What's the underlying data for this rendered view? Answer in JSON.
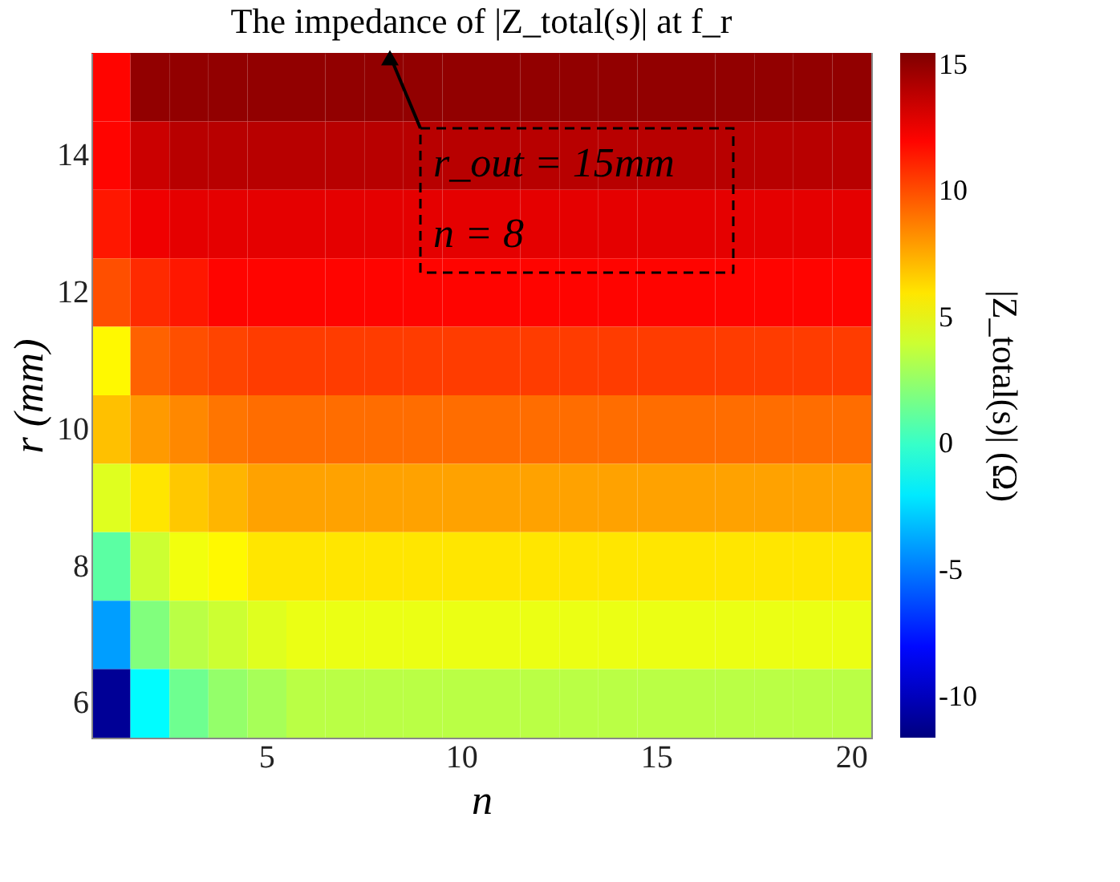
{
  "chart_data": {
    "type": "heatmap",
    "title": "The impedance of |Z_total(s)| at f_r",
    "xlabel": "n",
    "ylabel": "r (mm)",
    "clabel": "|Z_total(s)| (Ω)",
    "categories": [
      null,
      null,
      null,
      null,
      "5",
      null,
      null,
      null,
      null,
      "10",
      null,
      null,
      null,
      null,
      "15",
      null,
      null,
      null,
      null,
      "20"
    ],
    "y_categories": [
      null,
      "14",
      null,
      "12",
      null,
      "10",
      null,
      "8",
      null,
      "6"
    ],
    "cells": [
      [
        12,
        15,
        15,
        15,
        15,
        15,
        15,
        15,
        15,
        15,
        15,
        15,
        15,
        15,
        15,
        15,
        15,
        15,
        15,
        15
      ],
      [
        12,
        13.5,
        14,
        14,
        14,
        14,
        14,
        14,
        14,
        14,
        14,
        14,
        14,
        14,
        14,
        14,
        14,
        14,
        14,
        14
      ],
      [
        11.5,
        12.5,
        12.8,
        12.8,
        12.8,
        12.8,
        12.8,
        12.8,
        12.8,
        12.8,
        12.8,
        12.8,
        12.8,
        12.8,
        12.8,
        12.8,
        12.8,
        12.8,
        12.8,
        12.8
      ],
      [
        10,
        11,
        11.5,
        12,
        12,
        12,
        12,
        12,
        12,
        12,
        12,
        12,
        12,
        12,
        12,
        12,
        12,
        12,
        12,
        12
      ],
      [
        5.5,
        9.5,
        10,
        10.3,
        10.5,
        10.5,
        10.5,
        10.5,
        10.5,
        10.5,
        10.5,
        10.5,
        10.5,
        10.5,
        10.5,
        10.5,
        10.5,
        10.5,
        10.5,
        10.5
      ],
      [
        7,
        8,
        8.5,
        9,
        9.2,
        9.2,
        9.2,
        9.2,
        9.2,
        9.2,
        9.2,
        9.2,
        9.2,
        9.2,
        9.2,
        9.2,
        9.2,
        9.2,
        9.2,
        9.2
      ],
      [
        4.5,
        6,
        6.8,
        7.3,
        7.8,
        7.8,
        7.8,
        7.8,
        7.8,
        7.8,
        7.8,
        7.8,
        7.8,
        7.8,
        7.8,
        7.8,
        7.8,
        7.8,
        7.8,
        7.8
      ],
      [
        1,
        4,
        5,
        5.5,
        6,
        6,
        6,
        6,
        6,
        6,
        6,
        6,
        6,
        6,
        6,
        6,
        6,
        6,
        6,
        6
      ],
      [
        -4,
        2,
        3.5,
        4,
        4.5,
        4.8,
        4.8,
        4.8,
        4.8,
        4.8,
        4.8,
        4.8,
        4.8,
        4.8,
        4.8,
        4.8,
        4.8,
        4.8,
        4.8,
        4.8
      ],
      [
        -11,
        -1.5,
        1.5,
        2.5,
        3,
        3.5,
        3.5,
        3.5,
        3.5,
        3.5,
        3.5,
        3.5,
        3.5,
        3.5,
        3.5,
        3.5,
        3.5,
        3.5,
        3.5,
        3.5
      ]
    ],
    "clim": [
      -11.6,
      15.5
    ],
    "cticks": [
      -10,
      -5,
      0,
      5,
      10,
      15
    ],
    "grid": false,
    "annotations": [
      "r_out = 15mm",
      "n = 8"
    ]
  }
}
